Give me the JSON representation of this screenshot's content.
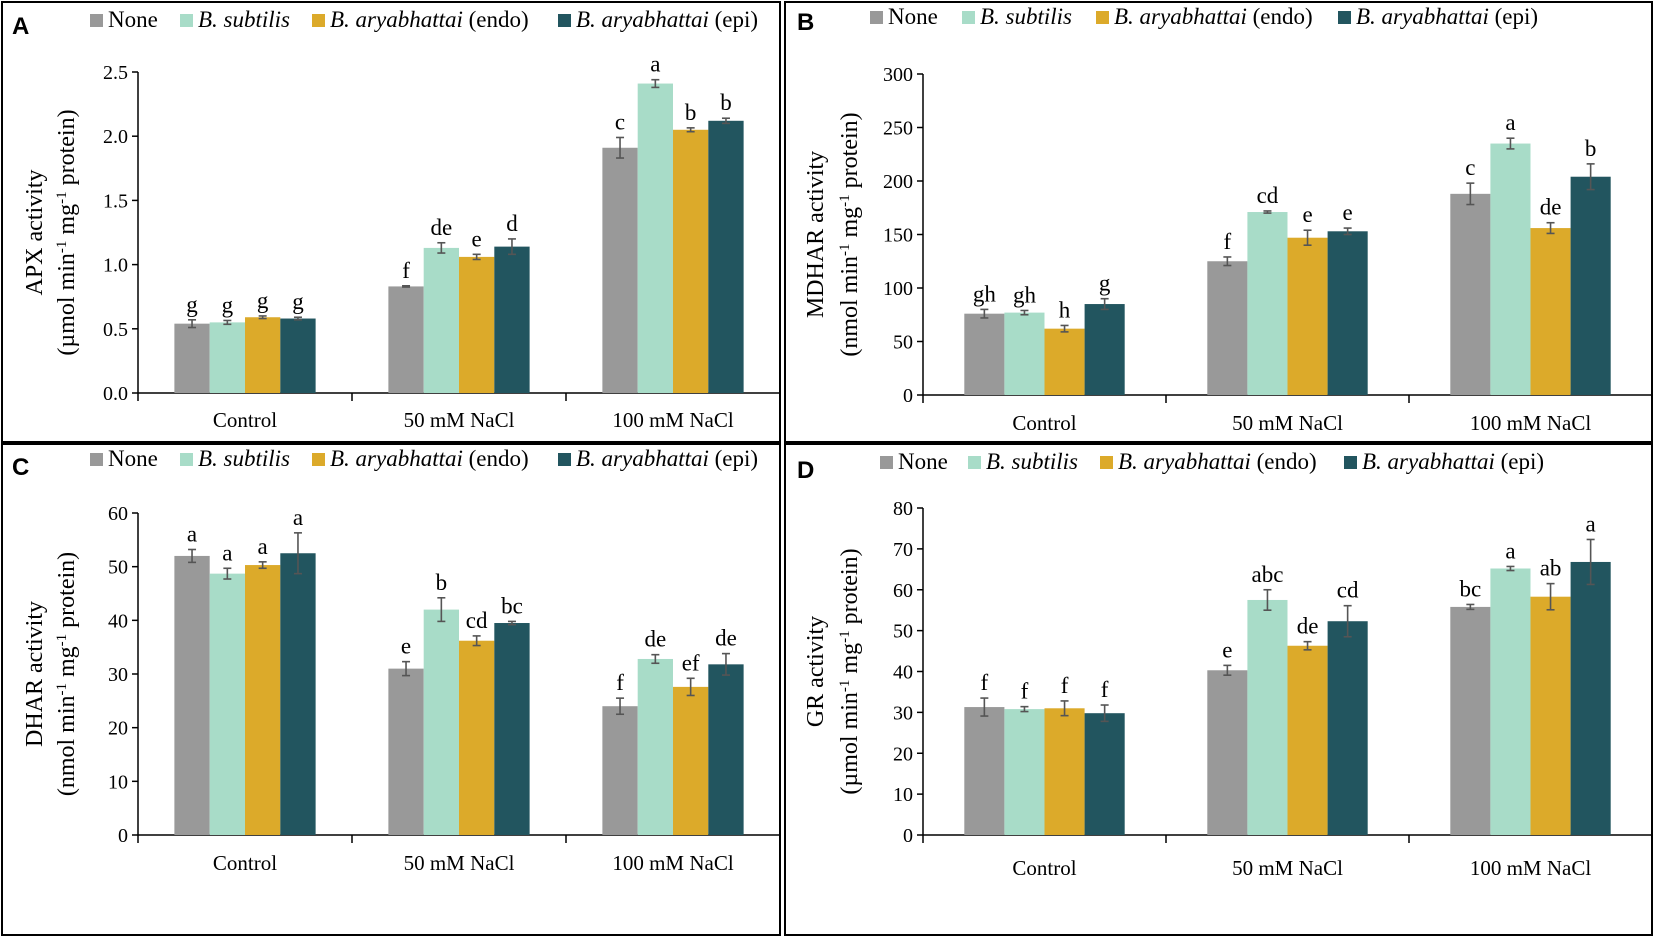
{
  "figure": {
    "series_colors": [
      "#999999",
      "#a8dcc8",
      "#dcaa2a",
      "#22555f"
    ],
    "error_bar_color": "#555555"
  },
  "chart_data": [
    {
      "type": "bar",
      "panel_letter": "A",
      "categories": [
        "Control",
        "50 mM NaCl",
        "100 mM NaCl"
      ],
      "series": [
        {
          "name": "None",
          "name_parts": [
            {
              "text": "None",
              "italic": false
            }
          ],
          "values": [
            0.54,
            0.83,
            1.91
          ],
          "errors": [
            0.03,
            0.005,
            0.08
          ],
          "labels": [
            "g",
            "f",
            "c"
          ]
        },
        {
          "name": "B. subtilis",
          "name_parts": [
            {
              "text": "B. subtilis",
              "italic": true
            }
          ],
          "values": [
            0.55,
            1.13,
            2.41
          ],
          "errors": [
            0.015,
            0.04,
            0.03
          ],
          "labels": [
            "g",
            "de",
            "a"
          ]
        },
        {
          "name": "B. aryabhattai (endo)",
          "name_parts": [
            {
              "text": "B. aryabhattai",
              "italic": true
            },
            {
              "text": " (endo)",
              "italic": false
            }
          ],
          "values": [
            0.59,
            1.06,
            2.05
          ],
          "errors": [
            0.01,
            0.02,
            0.015
          ],
          "labels": [
            "g",
            "e",
            "b"
          ]
        },
        {
          "name": "B. aryabhattai (epi)",
          "name_parts": [
            {
              "text": "B. aryabhattai",
              "italic": true
            },
            {
              "text": " (epi)",
              "italic": false
            }
          ],
          "values": [
            0.58,
            1.14,
            2.12
          ],
          "errors": [
            0.01,
            0.06,
            0.02
          ],
          "labels": [
            "g",
            "d",
            "b"
          ]
        }
      ],
      "ylim": [
        0,
        2.5
      ],
      "yticks": [
        "0.0",
        "0.5",
        "1.0",
        "1.5",
        "2.0",
        "2.5"
      ],
      "ylabel_line1": "APX activity",
      "ylabel_line2": {
        "pre": "(µmol min",
        "sup1": "-1",
        "mid": " mg",
        "sup2": "-1",
        "post": " protein)"
      },
      "legend_position": "top"
    },
    {
      "type": "bar",
      "panel_letter": "B",
      "categories": [
        "Control",
        "50 mM NaCl",
        "100 mM NaCl"
      ],
      "series": [
        {
          "name": "None",
          "name_parts": [
            {
              "text": "None",
              "italic": false
            }
          ],
          "values": [
            76,
            125,
            188
          ],
          "errors": [
            4,
            4,
            10
          ],
          "labels": [
            "gh",
            "f",
            "c"
          ]
        },
        {
          "name": "B. subtilis",
          "name_parts": [
            {
              "text": "B. subtilis",
              "italic": true
            }
          ],
          "values": [
            77,
            171,
            235
          ],
          "errors": [
            2,
            1,
            5
          ],
          "labels": [
            "gh",
            "cd",
            "a"
          ]
        },
        {
          "name": "B. aryabhattai (endo)",
          "name_parts": [
            {
              "text": "B. aryabhattai",
              "italic": true
            },
            {
              "text": " (endo)",
              "italic": false
            }
          ],
          "values": [
            62,
            147,
            156
          ],
          "errors": [
            3,
            7,
            5
          ],
          "labels": [
            "h",
            "e",
            "de"
          ]
        },
        {
          "name": "B. aryabhattai (epi)",
          "name_parts": [
            {
              "text": "B. aryabhattai",
              "italic": true
            },
            {
              "text": " (epi)",
              "italic": false
            }
          ],
          "values": [
            85,
            153,
            204
          ],
          "errors": [
            5,
            3,
            12
          ],
          "labels": [
            "g",
            "e",
            "b"
          ]
        }
      ],
      "ylim": [
        0,
        300
      ],
      "yticks": [
        "0",
        "50",
        "100",
        "150",
        "200",
        "250",
        "300"
      ],
      "ylabel_line1": "MDHAR activity",
      "ylabel_line2": {
        "pre": "(nmol min",
        "sup1": "-1",
        "mid": " mg",
        "sup2": "-1",
        "post": " protein)"
      },
      "legend_position": "top"
    },
    {
      "type": "bar",
      "panel_letter": "C",
      "categories": [
        "Control",
        "50 mM NaCl",
        "100 mM NaCl"
      ],
      "series": [
        {
          "name": "None",
          "name_parts": [
            {
              "text": "None",
              "italic": false
            }
          ],
          "values": [
            52,
            31,
            24
          ],
          "errors": [
            1.2,
            1.3,
            1.5
          ],
          "labels": [
            "a",
            "e",
            "f"
          ]
        },
        {
          "name": "B. subtilis",
          "name_parts": [
            {
              "text": "B. subtilis",
              "italic": true
            }
          ],
          "values": [
            48.7,
            42,
            32.8
          ],
          "errors": [
            1,
            2.2,
            0.8
          ],
          "labels": [
            "a",
            "b",
            "de"
          ]
        },
        {
          "name": "B. aryabhattai (endo)",
          "name_parts": [
            {
              "text": "B. aryabhattai",
              "italic": true
            },
            {
              "text": " (endo)",
              "italic": false
            }
          ],
          "values": [
            50.3,
            36.2,
            27.6
          ],
          "errors": [
            0.6,
            0.9,
            1.6
          ],
          "labels": [
            "a",
            "cd",
            "ef"
          ]
        },
        {
          "name": "B. aryabhattai (epi)",
          "name_parts": [
            {
              "text": "B. aryabhattai",
              "italic": true
            },
            {
              "text": " (epi)",
              "italic": false
            }
          ],
          "values": [
            52.5,
            39.5,
            31.8
          ],
          "errors": [
            3.8,
            0.3,
            2
          ],
          "labels": [
            "a",
            "bc",
            "de"
          ]
        }
      ],
      "ylim": [
        0,
        60
      ],
      "yticks": [
        "0",
        "10",
        "20",
        "30",
        "40",
        "50",
        "60"
      ],
      "ylabel_line1": "DHAR activity",
      "ylabel_line2": {
        "pre": "(nmol min",
        "sup1": "-1",
        "mid": " mg",
        "sup2": "-1",
        "post": " protein)"
      },
      "legend_position": "top"
    },
    {
      "type": "bar",
      "panel_letter": "D",
      "categories": [
        "Control",
        "50 mM NaCl",
        "100 mM NaCl"
      ],
      "series": [
        {
          "name": "None",
          "name_parts": [
            {
              "text": "None",
              "italic": false
            }
          ],
          "values": [
            31.3,
            40.3,
            55.8
          ],
          "errors": [
            2.2,
            1.2,
            0.6
          ],
          "labels": [
            "f",
            "e",
            "bc"
          ]
        },
        {
          "name": "B. subtilis",
          "name_parts": [
            {
              "text": "B. subtilis",
              "italic": true
            }
          ],
          "values": [
            30.8,
            57.5,
            65.2
          ],
          "errors": [
            0.6,
            2.5,
            0.5
          ],
          "labels": [
            "f",
            "abc",
            "a"
          ]
        },
        {
          "name": "B. aryabhattai (endo)",
          "name_parts": [
            {
              "text": "B. aryabhattai",
              "italic": true
            },
            {
              "text": " (endo)",
              "italic": false
            }
          ],
          "values": [
            31,
            46.3,
            58.3
          ],
          "errors": [
            1.8,
            1,
            3.2
          ],
          "labels": [
            "f",
            "de",
            "ab"
          ]
        },
        {
          "name": "B. aryabhattai (epi)",
          "name_parts": [
            {
              "text": "B. aryabhattai",
              "italic": true
            },
            {
              "text": " (epi)",
              "italic": false
            }
          ],
          "values": [
            29.8,
            52.3,
            66.8
          ],
          "errors": [
            2,
            3.8,
            5.5
          ],
          "labels": [
            "f",
            "cd",
            "a"
          ]
        }
      ],
      "ylim": [
        0,
        80
      ],
      "yticks": [
        "0",
        "10",
        "20",
        "30",
        "40",
        "50",
        "60",
        "70",
        "80"
      ],
      "ylabel_line1": "GR activity",
      "ylabel_line2": {
        "pre": "(µmol min",
        "sup1": "-1",
        "mid": " mg",
        "sup2": "-1",
        "post": " protein)"
      },
      "legend_position": "top"
    }
  ]
}
